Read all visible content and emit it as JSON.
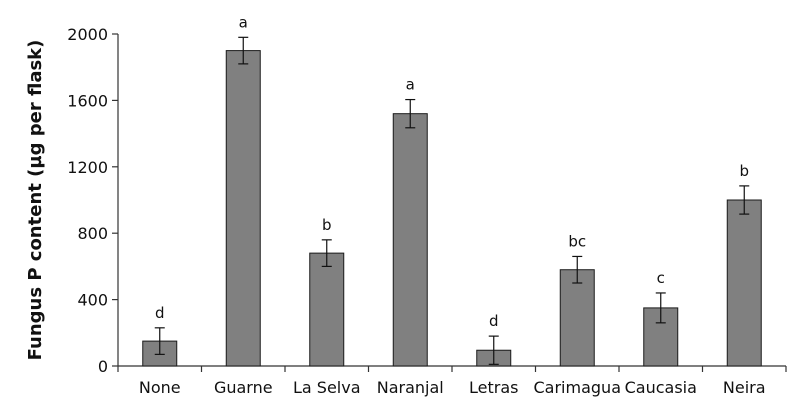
{
  "chart_data": {
    "type": "bar",
    "title": "",
    "xlabel": "",
    "ylabel": "Fungus P content (µg per flask)",
    "ylim": [
      0,
      2000
    ],
    "yticks": [
      0,
      400,
      800,
      1200,
      1600,
      2000
    ],
    "ytick_labels": [
      "0",
      "400",
      "800",
      "1200",
      "1600",
      "2000"
    ],
    "grid": false,
    "categories": [
      "None",
      "Guarne",
      "La Selva",
      "Naranjal",
      "Letras",
      "Carimagua",
      "Caucasia",
      "Neira"
    ],
    "values": [
      150,
      1900,
      680,
      1520,
      95,
      580,
      350,
      1000
    ],
    "error": [
      80,
      80,
      80,
      85,
      85,
      80,
      90,
      85
    ],
    "significance": [
      "d",
      "a",
      "b",
      "a",
      "d",
      "bc",
      "c",
      "b"
    ],
    "bar_color": "#808080",
    "bar_edge_color": "#1a1a1a"
  }
}
